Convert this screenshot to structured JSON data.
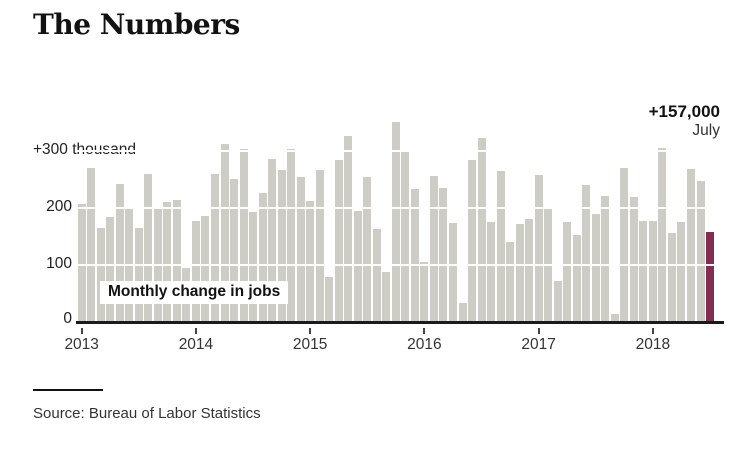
{
  "page": {
    "title": "The Numbers"
  },
  "chart_data": {
    "type": "bar",
    "title": "The Numbers",
    "series_label": "Monthly change in jobs",
    "unit": "thousand",
    "ylim": [
      0,
      355
    ],
    "grid": "horizontal-white-over-bars",
    "y_axis": {
      "labels": [
        "+300 thousand",
        "200",
        "100",
        "0"
      ],
      "values": [
        300,
        200,
        100,
        0
      ]
    },
    "x_tick_labels": [
      "2013",
      "2014",
      "2015",
      "2016",
      "2017",
      "2018"
    ],
    "annotation": {
      "value": "+157,000",
      "month": "July"
    },
    "colors": {
      "bar": "#cdccc5",
      "highlight": "#822d51",
      "axis": "#1a1a1a"
    },
    "highlight_index": 66,
    "x": [
      "2013-01",
      "2013-02",
      "2013-03",
      "2013-04",
      "2013-05",
      "2013-06",
      "2013-07",
      "2013-08",
      "2013-09",
      "2013-10",
      "2013-11",
      "2013-12",
      "2014-01",
      "2014-02",
      "2014-03",
      "2014-04",
      "2014-05",
      "2014-06",
      "2014-07",
      "2014-08",
      "2014-09",
      "2014-10",
      "2014-11",
      "2014-12",
      "2015-01",
      "2015-02",
      "2015-03",
      "2015-04",
      "2015-05",
      "2015-06",
      "2015-07",
      "2015-08",
      "2015-09",
      "2015-10",
      "2015-11",
      "2015-12",
      "2016-01",
      "2016-02",
      "2016-03",
      "2016-04",
      "2016-05",
      "2016-06",
      "2016-07",
      "2016-08",
      "2016-09",
      "2016-10",
      "2016-11",
      "2016-12",
      "2017-01",
      "2017-02",
      "2017-03",
      "2017-04",
      "2017-05",
      "2017-06",
      "2017-07",
      "2017-08",
      "2017-09",
      "2017-10",
      "2017-11",
      "2017-12",
      "2018-01",
      "2018-02",
      "2018-03",
      "2018-04",
      "2018-05",
      "2018-06",
      "2018-07"
    ],
    "values": [
      207,
      270,
      165,
      183,
      242,
      200,
      164,
      259,
      200,
      210,
      214,
      95,
      176,
      185,
      260,
      312,
      250,
      303,
      193,
      225,
      285,
      266,
      303,
      254,
      212,
      266,
      79,
      284,
      326,
      194,
      254,
      163,
      88,
      350,
      297,
      233,
      105,
      255,
      235,
      173,
      33,
      284,
      323,
      175,
      264,
      140,
      171,
      180,
      257,
      200,
      71,
      175,
      152,
      239,
      189,
      220,
      14,
      269,
      218,
      176,
      176,
      305,
      155,
      175,
      268,
      247,
      157
    ]
  },
  "footer": {
    "source": "Source: Bureau of Labor Statistics"
  }
}
